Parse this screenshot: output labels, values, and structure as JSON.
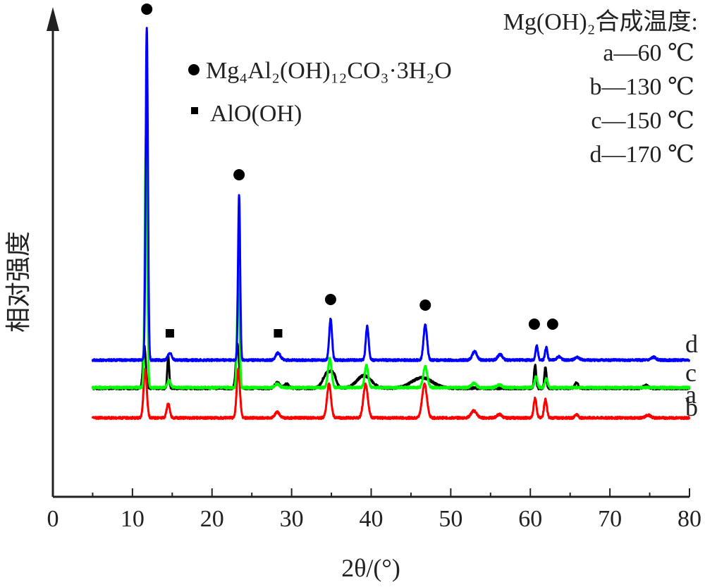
{
  "chart_data": {
    "type": "line",
    "title": "",
    "xlabel": "2θ/(°)",
    "ylabel": "相对强度",
    "xlim": [
      0,
      80
    ],
    "x_ticks": [
      "0",
      "10",
      "20",
      "30",
      "40",
      "50",
      "60",
      "70",
      "80"
    ],
    "y_ticks": [],
    "grid": false,
    "legend_title": "Mg(OH)₂合成温度:",
    "legend_entries": [
      "a—60 ℃",
      "b—130 ℃",
      "c—150 ℃",
      "d—170 ℃"
    ],
    "phase_legend": [
      {
        "marker": "circle",
        "label": "Mg₄Al₂(OH)₁₂CO₃·3H₂O"
      },
      {
        "marker": "square",
        "label": "AlO(OH)"
      }
    ],
    "series": [
      {
        "name": "a",
        "color": "#000000",
        "peaks": [
          {
            "x": 11.5,
            "h": 60,
            "w": 0.18
          },
          {
            "x": 14.5,
            "h": 45,
            "w": 0.12
          },
          {
            "x": 23.2,
            "h": 62,
            "w": 0.2
          },
          {
            "x": 28.2,
            "h": 8,
            "w": 0.3
          },
          {
            "x": 29.4,
            "h": 6,
            "w": 0.3
          },
          {
            "x": 34.5,
            "h": 22,
            "w": 0.55
          },
          {
            "x": 35.3,
            "h": 14,
            "w": 0.35
          },
          {
            "x": 39.1,
            "h": 18,
            "w": 0.9
          },
          {
            "x": 46.4,
            "h": 15,
            "w": 1.3
          },
          {
            "x": 60.6,
            "h": 33,
            "w": 0.13
          },
          {
            "x": 61.9,
            "h": 30,
            "w": 0.13
          },
          {
            "x": 65.8,
            "h": 8,
            "w": 0.2
          },
          {
            "x": 74.5,
            "h": 4,
            "w": 0.3
          }
        ]
      },
      {
        "name": "b",
        "color": "#ff0000",
        "peaks": [
          {
            "x": 11.6,
            "h": 70,
            "w": 0.2
          },
          {
            "x": 14.5,
            "h": 20,
            "w": 0.2
          },
          {
            "x": 23.3,
            "h": 70,
            "w": 0.2
          },
          {
            "x": 28.2,
            "h": 8,
            "w": 0.3
          },
          {
            "x": 34.7,
            "h": 48,
            "w": 0.25
          },
          {
            "x": 39.3,
            "h": 48,
            "w": 0.28
          },
          {
            "x": 46.7,
            "h": 48,
            "w": 0.3
          },
          {
            "x": 52.9,
            "h": 10,
            "w": 0.35
          },
          {
            "x": 56.1,
            "h": 5,
            "w": 0.3
          },
          {
            "x": 60.6,
            "h": 28,
            "w": 0.18
          },
          {
            "x": 61.9,
            "h": 26,
            "w": 0.18
          },
          {
            "x": 65.8,
            "h": 5,
            "w": 0.2
          },
          {
            "x": 74.8,
            "h": 4,
            "w": 0.3
          }
        ]
      },
      {
        "name": "c",
        "color": "#00ff00",
        "peaks": [
          {
            "x": 11.7,
            "h": 360,
            "w": 0.15
          },
          {
            "x": 14.6,
            "h": 10,
            "w": 0.2
          },
          {
            "x": 23.3,
            "h": 165,
            "w": 0.15
          },
          {
            "x": 28.2,
            "h": 5,
            "w": 0.3
          },
          {
            "x": 34.8,
            "h": 42,
            "w": 0.22
          },
          {
            "x": 39.4,
            "h": 32,
            "w": 0.22
          },
          {
            "x": 46.8,
            "h": 30,
            "w": 0.25
          },
          {
            "x": 52.9,
            "h": 6,
            "w": 0.3
          },
          {
            "x": 56.1,
            "h": 4,
            "w": 0.3
          },
          {
            "x": 60.7,
            "h": 15,
            "w": 0.18
          },
          {
            "x": 62.0,
            "h": 12,
            "w": 0.18
          }
        ]
      },
      {
        "name": "d",
        "color": "#0000ff",
        "peaks": [
          {
            "x": 11.8,
            "h": 470,
            "w": 0.14
          },
          {
            "x": 14.7,
            "h": 10,
            "w": 0.25
          },
          {
            "x": 23.4,
            "h": 235,
            "w": 0.13
          },
          {
            "x": 28.3,
            "h": 10,
            "w": 0.3
          },
          {
            "x": 34.9,
            "h": 58,
            "w": 0.18
          },
          {
            "x": 39.5,
            "h": 48,
            "w": 0.18
          },
          {
            "x": 46.8,
            "h": 50,
            "w": 0.22
          },
          {
            "x": 53.0,
            "h": 12,
            "w": 0.3
          },
          {
            "x": 56.2,
            "h": 8,
            "w": 0.3
          },
          {
            "x": 60.8,
            "h": 20,
            "w": 0.15
          },
          {
            "x": 62.0,
            "h": 18,
            "w": 0.15
          },
          {
            "x": 63.6,
            "h": 5,
            "w": 0.25
          },
          {
            "x": 65.9,
            "h": 4,
            "w": 0.3
          },
          {
            "x": 75.5,
            "h": 4,
            "w": 0.3
          }
        ]
      }
    ],
    "peak_markers": [
      {
        "x": 11.8,
        "type": "circle"
      },
      {
        "x": 14.7,
        "type": "square"
      },
      {
        "x": 23.4,
        "type": "circle"
      },
      {
        "x": 28.3,
        "type": "square"
      },
      {
        "x": 34.9,
        "type": "circle"
      },
      {
        "x": 46.8,
        "type": "circle"
      },
      {
        "x": 60.5,
        "type": "circle"
      },
      {
        "x": 62.8,
        "type": "circle"
      }
    ]
  }
}
